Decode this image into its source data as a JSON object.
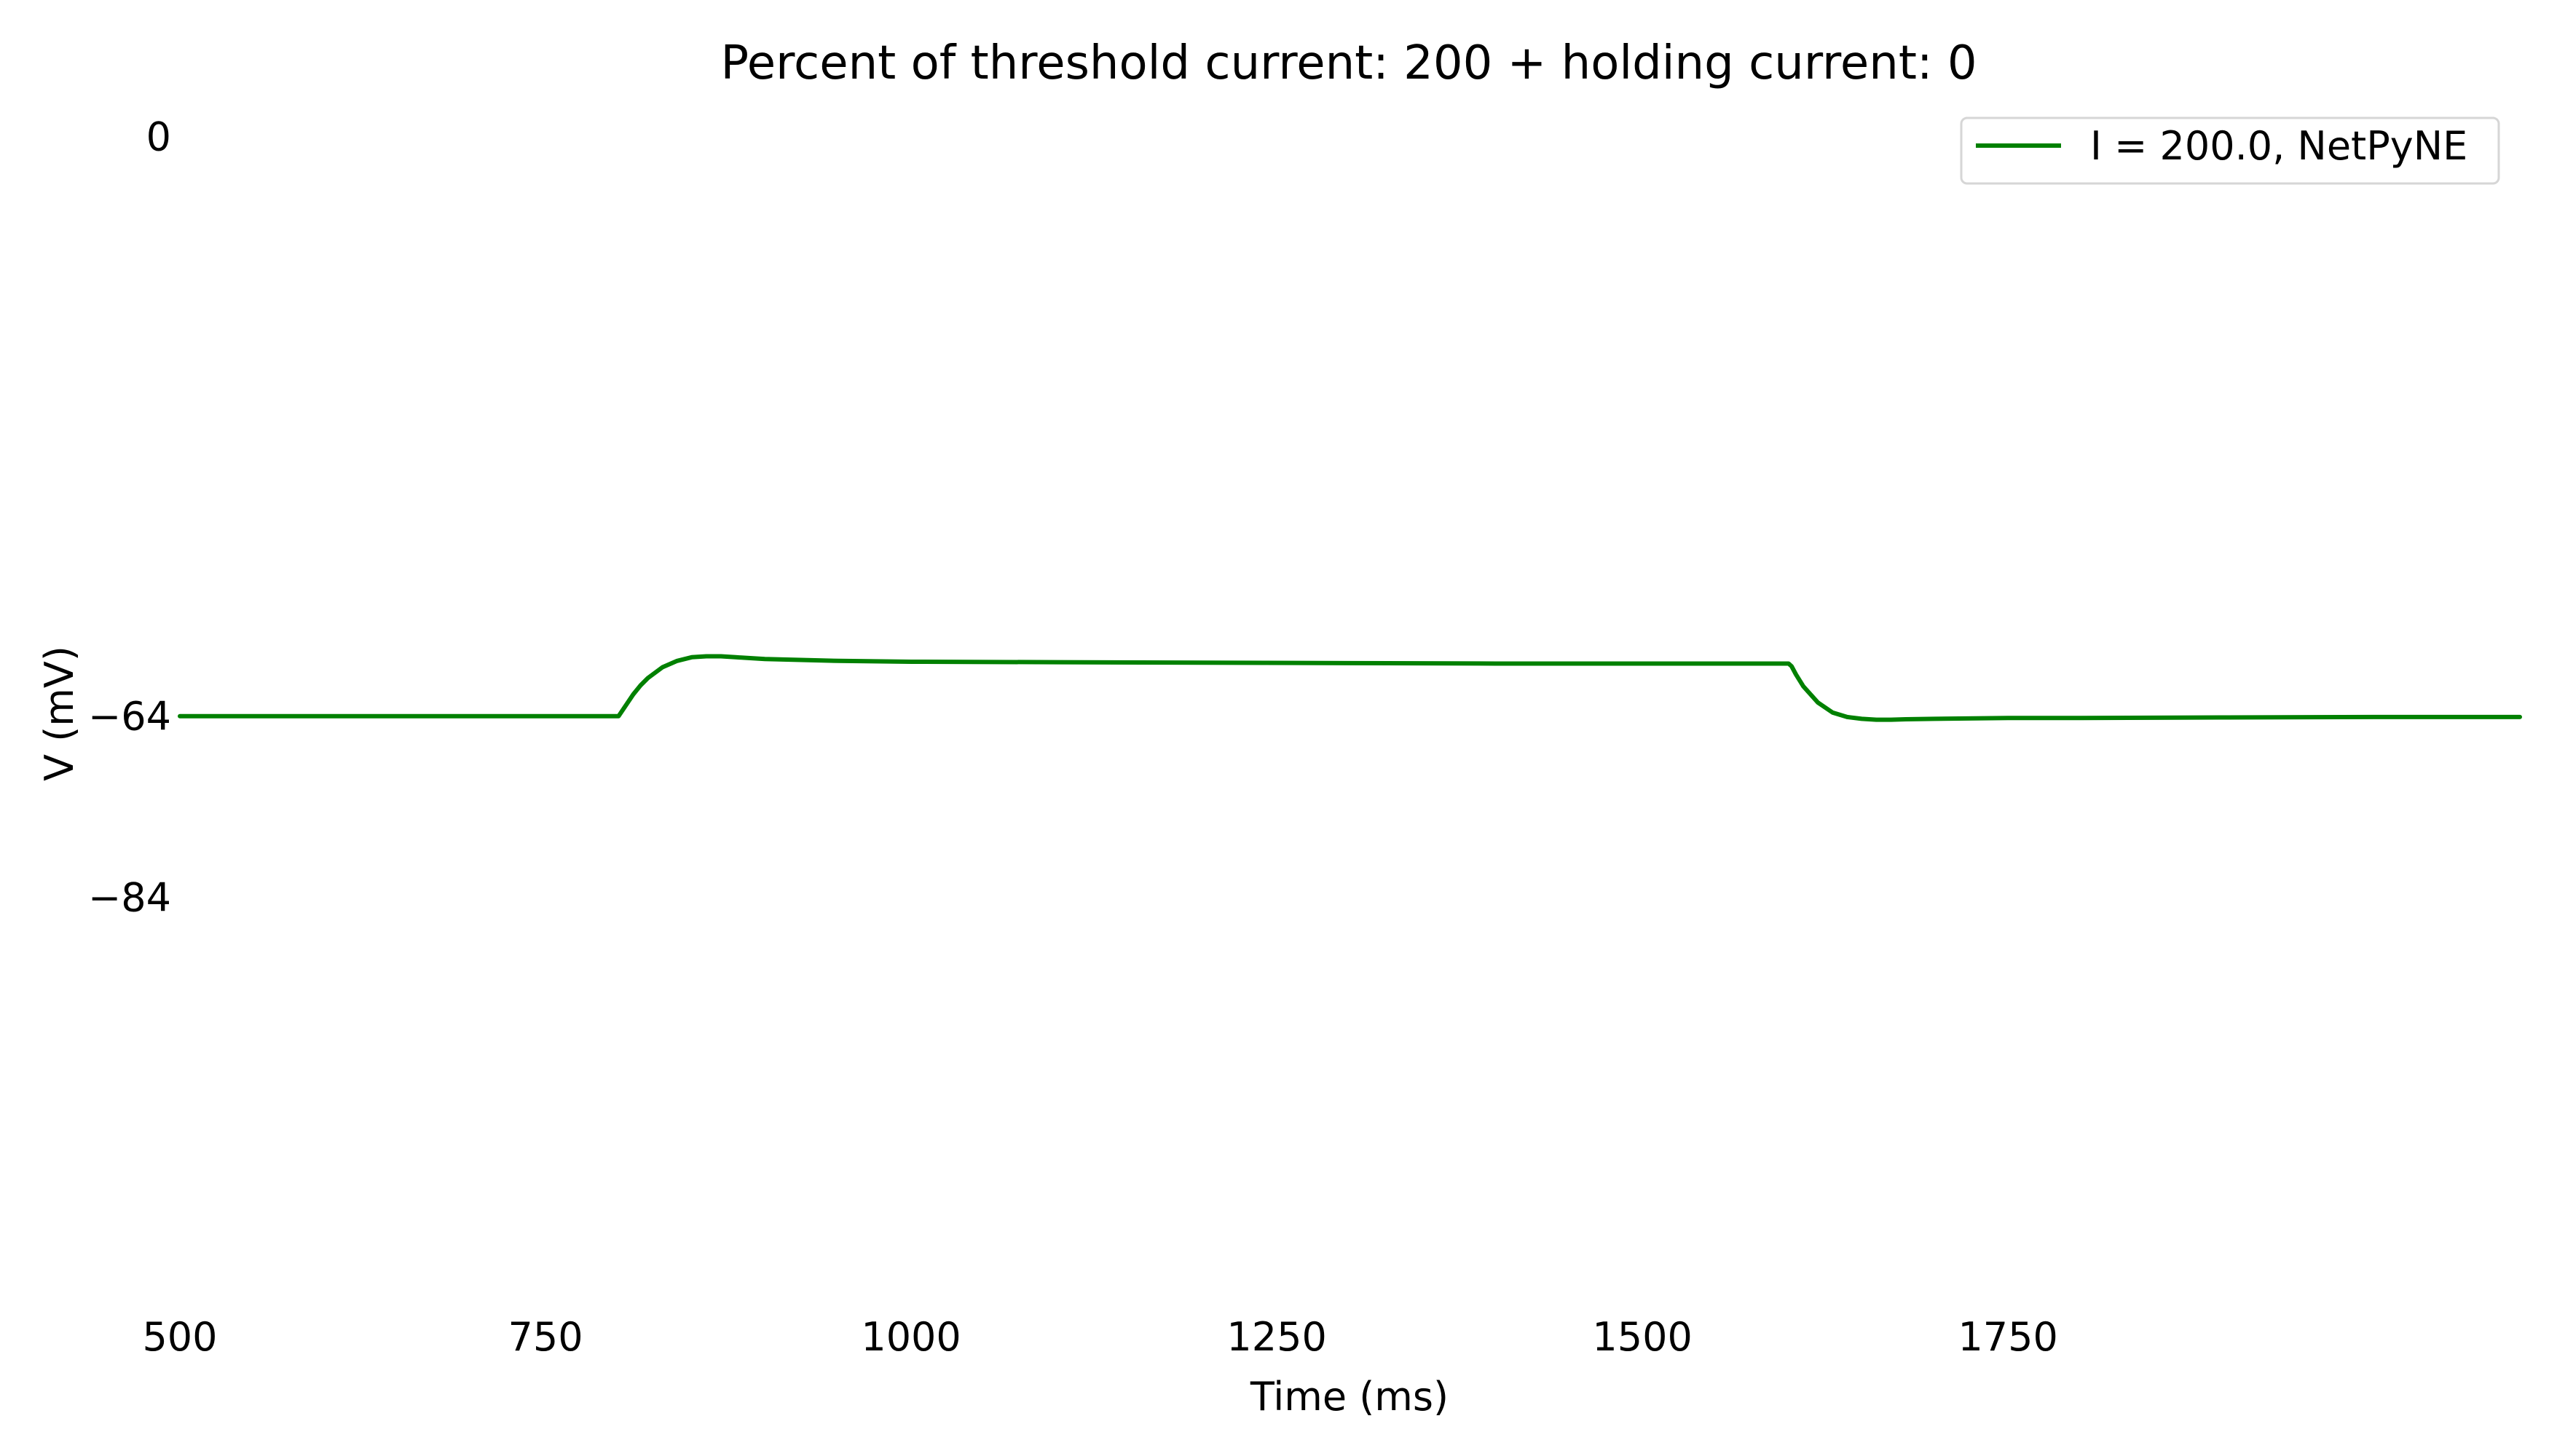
{
  "chart_data": {
    "type": "line",
    "title": "Percent of threshold current: 200 + holding current: 0",
    "xlabel": "Time (ms)",
    "ylabel": "V (mV)",
    "xlim": [
      500,
      2100
    ],
    "ylim": [
      -128,
      3
    ],
    "x_ticks": [
      500,
      750,
      1000,
      1250,
      1500,
      1750
    ],
    "x_tick_labels": [
      "500",
      "750",
      "1000",
      "1250",
      "1500",
      "1750"
    ],
    "y_ticks": [
      0,
      -64,
      -84
    ],
    "y_tick_labels": [
      "0",
      "−64",
      "−84"
    ],
    "grid": false,
    "legend_position": "top-right",
    "series": [
      {
        "name": "I = 200.0, NetPyNE",
        "color": "#008000",
        "x": [
          500,
          600,
          700,
          799,
          800,
          805,
          810,
          815,
          820,
          830,
          840,
          850,
          860,
          870,
          880,
          900,
          950,
          1000,
          1100,
          1200,
          1300,
          1400,
          1500,
          1600,
          1602,
          1605,
          1610,
          1620,
          1630,
          1640,
          1650,
          1660,
          1670,
          1680,
          1700,
          1750,
          1800,
          1900,
          2000,
          2100
        ],
        "y": [
          -64,
          -64,
          -64,
          -64,
          -64,
          -62.8,
          -61.6,
          -60.6,
          -59.8,
          -58.6,
          -57.9,
          -57.5,
          -57.4,
          -57.4,
          -57.5,
          -57.7,
          -57.9,
          -58,
          -58.05,
          -58.1,
          -58.15,
          -58.2,
          -58.2,
          -58.2,
          -58.5,
          -59.4,
          -60.7,
          -62.5,
          -63.6,
          -64.1,
          -64.3,
          -64.4,
          -64.4,
          -64.35,
          -64.3,
          -64.2,
          -64.2,
          -64.15,
          -64.1,
          -64.1
        ]
      }
    ]
  }
}
